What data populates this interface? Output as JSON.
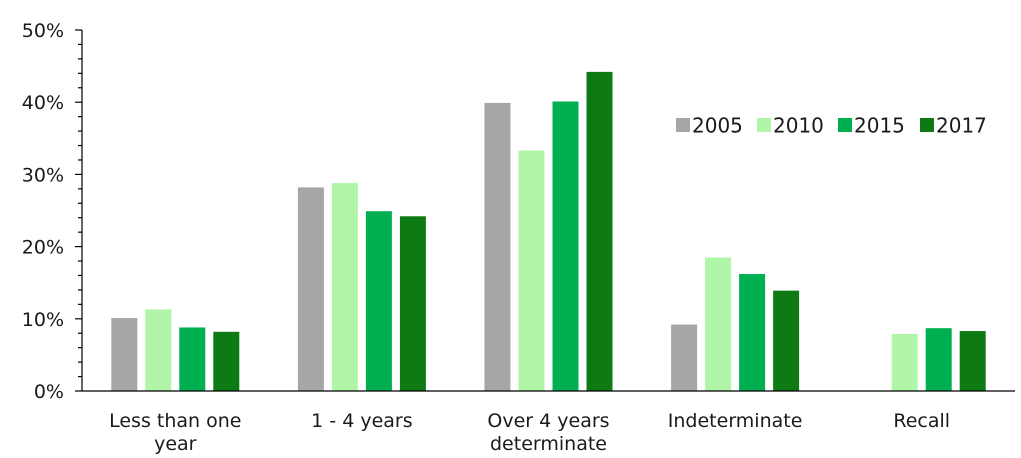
{
  "chart_data": {
    "type": "bar",
    "title": "",
    "xlabel": "",
    "ylabel": "",
    "ylim": [
      0,
      50
    ],
    "y_tick_values": [
      0,
      10,
      20,
      30,
      40,
      50
    ],
    "y_tick_labels": [
      "0%",
      "10%",
      "20%",
      "30%",
      "40%",
      "50%"
    ],
    "grid": false,
    "legend_position": "right, upper-middle",
    "categories": [
      [
        "Less than one",
        "year"
      ],
      [
        "1 - 4 years"
      ],
      [
        "Over 4 years",
        "determinate"
      ],
      [
        "Indeterminate"
      ],
      [
        "Recall"
      ]
    ],
    "series": [
      {
        "name": "2005",
        "color": "#a6a6a6",
        "values": [
          10.1,
          28.2,
          39.9,
          9.2,
          null
        ]
      },
      {
        "name": "2010",
        "color": "#b0f5a8",
        "values": [
          11.3,
          28.8,
          33.3,
          18.5,
          7.9
        ]
      },
      {
        "name": "2015",
        "color": "#00b050",
        "values": [
          8.8,
          24.9,
          40.1,
          16.2,
          8.7
        ]
      },
      {
        "name": "2017",
        "color": "#0e7a14",
        "values": [
          8.2,
          24.2,
          44.2,
          13.9,
          8.3
        ]
      }
    ]
  }
}
